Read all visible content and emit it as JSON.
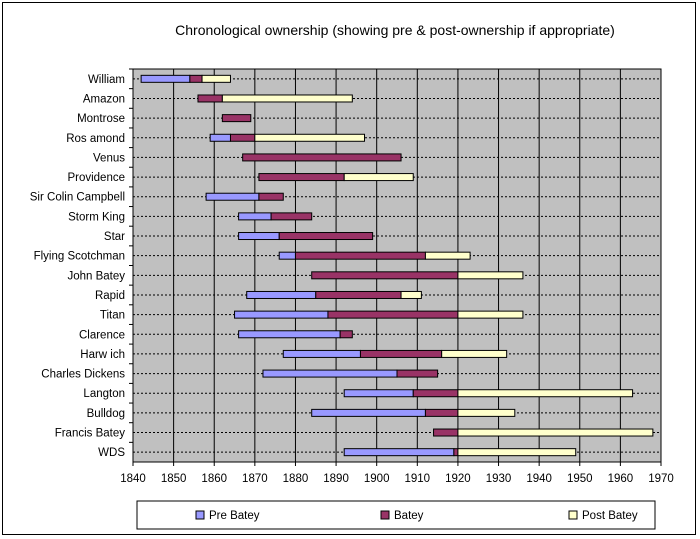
{
  "chart_data": {
    "type": "bar",
    "title": "Chronological ownership (showing pre & post-ownership if appropriate)",
    "xlim": [
      1840,
      1970
    ],
    "xticks": [
      1840,
      1850,
      1860,
      1870,
      1880,
      1890,
      1900,
      1910,
      1920,
      1930,
      1940,
      1950,
      1960,
      1970
    ],
    "legend": [
      {
        "name": "Pre Batey",
        "color": "#9999ff"
      },
      {
        "name": "Batey",
        "color": "#993366"
      },
      {
        "name": "Post Batey",
        "color": "#ffffcc"
      }
    ],
    "legend_position": "bottom",
    "grid": true,
    "categories": [
      "William",
      "Amazon",
      "Montrose",
      "Ros amond",
      "Venus",
      "Providence",
      "Sir Colin Campbell",
      "Storm King",
      "Star",
      "Flying Scotchman",
      "John Batey",
      "Rapid",
      "Titan",
      "Clarence",
      "Harw ich",
      "Charles Dickens",
      "Langton",
      "Bulldog",
      "Francis Batey",
      "WDS"
    ],
    "rows": [
      {
        "name": "William",
        "pre": [
          1842,
          1854
        ],
        "batey": [
          1854,
          1857
        ],
        "post": [
          1857,
          1864
        ]
      },
      {
        "name": "Amazon",
        "pre": null,
        "batey": [
          1856,
          1862
        ],
        "post": [
          1862,
          1894
        ]
      },
      {
        "name": "Montrose",
        "pre": null,
        "batey": [
          1862,
          1869
        ],
        "post": null
      },
      {
        "name": "Ros amond",
        "pre": [
          1859,
          1864
        ],
        "batey": [
          1864,
          1870
        ],
        "post": [
          1870,
          1897
        ]
      },
      {
        "name": "Venus",
        "pre": null,
        "batey": [
          1867,
          1906
        ],
        "post": null
      },
      {
        "name": "Providence",
        "pre": null,
        "batey": [
          1871,
          1892
        ],
        "post": [
          1892,
          1909
        ]
      },
      {
        "name": "Sir Colin Campbell",
        "pre": [
          1858,
          1871
        ],
        "batey": [
          1871,
          1877
        ],
        "post": null
      },
      {
        "name": "Storm King",
        "pre": [
          1866,
          1874
        ],
        "batey": [
          1874,
          1884
        ],
        "post": null
      },
      {
        "name": "Star",
        "pre": [
          1866,
          1876
        ],
        "batey": [
          1876,
          1899
        ],
        "post": null
      },
      {
        "name": "Flying Scotchman",
        "pre": [
          1876,
          1880
        ],
        "batey": [
          1880,
          1912
        ],
        "post": [
          1912,
          1923
        ]
      },
      {
        "name": "John Batey",
        "pre": null,
        "batey": [
          1884,
          1920
        ],
        "post": [
          1920,
          1936
        ]
      },
      {
        "name": "Rapid",
        "pre": [
          1868,
          1885
        ],
        "batey": [
          1885,
          1906
        ],
        "post": [
          1906,
          1911
        ]
      },
      {
        "name": "Titan",
        "pre": [
          1865,
          1888
        ],
        "batey": [
          1888,
          1920
        ],
        "post": [
          1920,
          1936
        ]
      },
      {
        "name": "Clarence",
        "pre": [
          1866,
          1891
        ],
        "batey": [
          1891,
          1894
        ],
        "post": null
      },
      {
        "name": "Harw ich",
        "pre": [
          1877,
          1896
        ],
        "batey": [
          1896,
          1916
        ],
        "post": [
          1916,
          1932
        ]
      },
      {
        "name": "Charles Dickens",
        "pre": [
          1872,
          1905
        ],
        "batey": [
          1905,
          1915
        ],
        "post": null
      },
      {
        "name": "Langton",
        "pre": [
          1892,
          1909
        ],
        "batey": [
          1909,
          1920
        ],
        "post": [
          1920,
          1963
        ]
      },
      {
        "name": "Bulldog",
        "pre": [
          1884,
          1912
        ],
        "batey": [
          1912,
          1920
        ],
        "post": [
          1920,
          1934
        ]
      },
      {
        "name": "Francis Batey",
        "pre": null,
        "batey": [
          1914,
          1920
        ],
        "post": [
          1920,
          1968
        ]
      },
      {
        "name": "WDS",
        "pre": [
          1892,
          1919
        ],
        "batey": [
          1919,
          1920
        ],
        "post": [
          1920,
          1949
        ]
      }
    ]
  }
}
